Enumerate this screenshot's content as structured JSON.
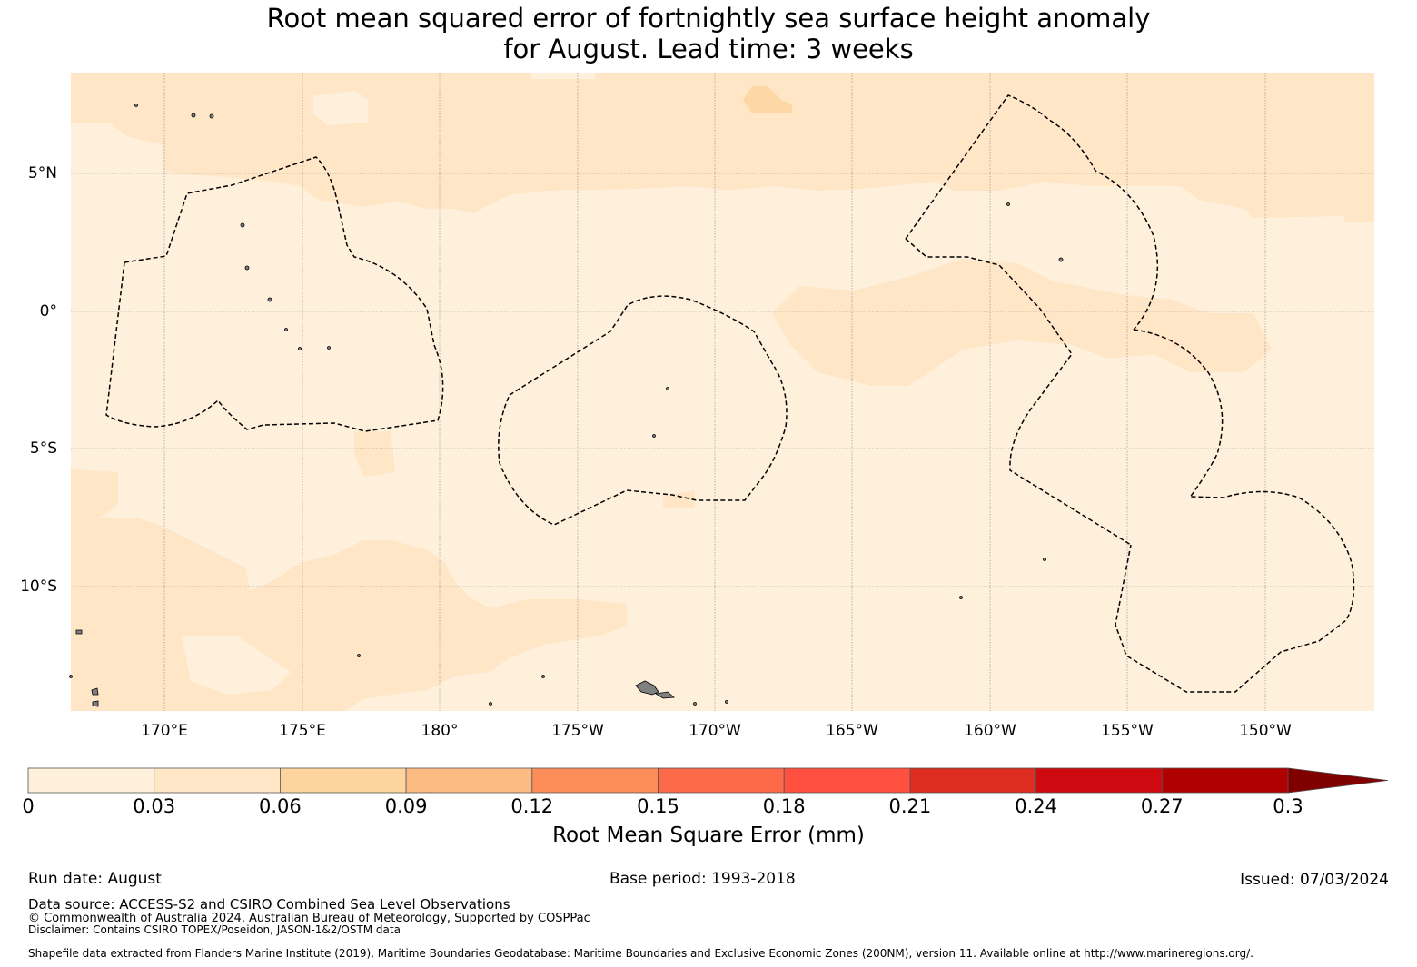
{
  "title": {
    "line1": "Root mean squared error of fortnightly sea surface height anomaly",
    "line2": "for August. Lead time: 3 weeks"
  },
  "map": {
    "lat_labels": [
      "5°N",
      "0°",
      "5°S",
      "10°S"
    ],
    "lon_labels": [
      "170°E",
      "175°E",
      "180°",
      "175°W",
      "170°W",
      "165°W",
      "160°W",
      "155°W",
      "150°W"
    ],
    "colors": {
      "ocean_low": "#fff0dc",
      "ocean_mid": "#fee6c7",
      "ocean_high": "#fdd8a6",
      "land": "#808080",
      "eez_boundary": "#000000"
    }
  },
  "colorbar": {
    "ticks": [
      "0",
      "0.03",
      "0.06",
      "0.09",
      "0.12",
      "0.15",
      "0.18",
      "0.21",
      "0.24",
      "0.27",
      "0.3"
    ],
    "colors": [
      "#fff0dc",
      "#fee6c7",
      "#fdd49e",
      "#fdbb84",
      "#fc8d59",
      "#fc6a4a",
      "#ff5040",
      "#dc2d20",
      "#cc0a10",
      "#b00000",
      "#800000"
    ],
    "label": "Root Mean Square Error (mm)"
  },
  "footer": {
    "run_date": "Run date: August",
    "base_period": "Base period: 1993-2018",
    "issued": "Issued: 07/03/2024",
    "data_source": "Data source: ACCESS-S2 and CSIRO Combined Sea Level Observations",
    "copyright": "© Commonwealth of Australia 2024, Australian Bureau of Meteorology, Supported by COSPPac",
    "disclaimer": "Disclaimer: Contains CSIRO TOPEX/Poseidon, JASON-1&2/OSTM data",
    "shapefile": "Shapefile data extracted from Flanders Marine Institute (2019), Maritime Boundaries Geodatabase: Maritime Boundaries and Exclusive Economic Zones (200NM), version 11. Available online at http://www.marineregions.org/."
  }
}
